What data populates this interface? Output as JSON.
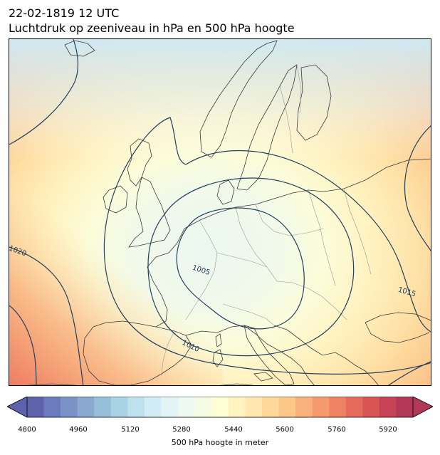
{
  "title": {
    "line1": "22-02-1819 12 UTC",
    "line2": "Luchtdruk op zeeniveau in hPa en 500 hPa hoogte"
  },
  "map": {
    "contour_labels": [
      "1020",
      "1005",
      "1015",
      "1010"
    ],
    "contour_color": "#23405e",
    "coast_color": "#3a3a3a",
    "border_color": "#9a9a9a"
  },
  "colorbar": {
    "label": "500 hPa hoogte in meter",
    "ticks": [
      "4800",
      "4960",
      "5120",
      "5280",
      "5440",
      "5600",
      "5760",
      "5920"
    ],
    "min": 4800,
    "max": 5960,
    "step": 40,
    "colors_low_to_high": [
      "#5e62ad",
      "#6c7bbb",
      "#7a92c5",
      "#89a9cf",
      "#98bfd9",
      "#a9d2e4",
      "#bde1ed",
      "#d1ecf4",
      "#e3f4f7",
      "#eef9f1",
      "#f6fbe3",
      "#fefdd3",
      "#fff3c0",
      "#ffe7ad",
      "#fed89b",
      "#fdc78a",
      "#f9b17b",
      "#f59a6e",
      "#ef8262",
      "#e66b5b",
      "#d95555",
      "#c64456",
      "#b23857"
    ]
  }
}
